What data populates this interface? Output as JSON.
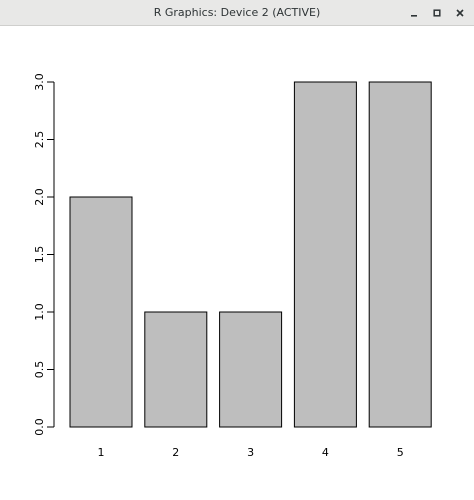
{
  "window": {
    "title": "R Graphics: Device 2 (ACTIVE)",
    "controls": [
      "minimize",
      "maximize",
      "close"
    ]
  },
  "chart_data": {
    "type": "bar",
    "categories": [
      "1",
      "2",
      "3",
      "4",
      "5"
    ],
    "values": [
      2,
      1,
      1,
      3,
      3
    ],
    "title": "",
    "xlabel": "",
    "ylabel": "",
    "ylim": [
      0,
      3
    ],
    "yticks": [
      0.0,
      0.5,
      1.0,
      1.5,
      2.0,
      2.5,
      3.0
    ],
    "ytick_labels": [
      "0.0",
      "0.5",
      "1.0",
      "1.5",
      "2.0",
      "2.5",
      "3.0"
    ],
    "grid": false,
    "bar_fill": "#bebebe",
    "bar_stroke": "#000000"
  }
}
